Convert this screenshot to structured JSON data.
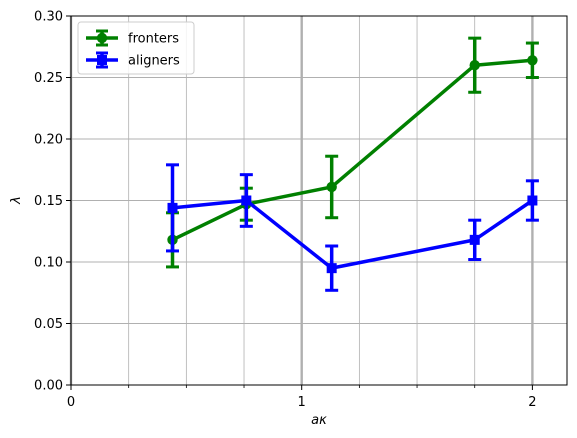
{
  "chart_data": {
    "type": "line",
    "xlabel": "aκ",
    "ylabel": "λ",
    "xlim": [
      0,
      2.15
    ],
    "ylim": [
      0,
      0.3
    ],
    "x_major_ticks": [
      0,
      1,
      2
    ],
    "x_tick_labels": [
      "0",
      "1",
      "2"
    ],
    "x_minor_ticks": [
      0.25,
      0.5,
      0.75,
      1.25,
      1.5,
      1.75
    ],
    "y_ticks": [
      0,
      0.05,
      0.1,
      0.15,
      0.2,
      0.25,
      0.3
    ],
    "y_tick_labels": [
      "0.00",
      "0.05",
      "0.10",
      "0.15",
      "0.20",
      "0.25",
      "0.30"
    ],
    "grid": true,
    "legend_position": "top-left",
    "series": [
      {
        "name": "fronters",
        "color": "#008000",
        "marker": "circle",
        "x": [
          0.44,
          0.76,
          1.13,
          1.75,
          2.0
        ],
        "y": [
          0.118,
          0.147,
          0.161,
          0.26,
          0.264
        ],
        "yerr": [
          0.022,
          0.013,
          0.025,
          0.022,
          0.014
        ]
      },
      {
        "name": "aligners",
        "color": "#0000ff",
        "marker": "square",
        "x": [
          0.44,
          0.76,
          1.13,
          1.75,
          2.0
        ],
        "y": [
          0.144,
          0.15,
          0.095,
          0.118,
          0.15
        ],
        "yerr": [
          0.035,
          0.021,
          0.018,
          0.016,
          0.016
        ]
      }
    ]
  }
}
